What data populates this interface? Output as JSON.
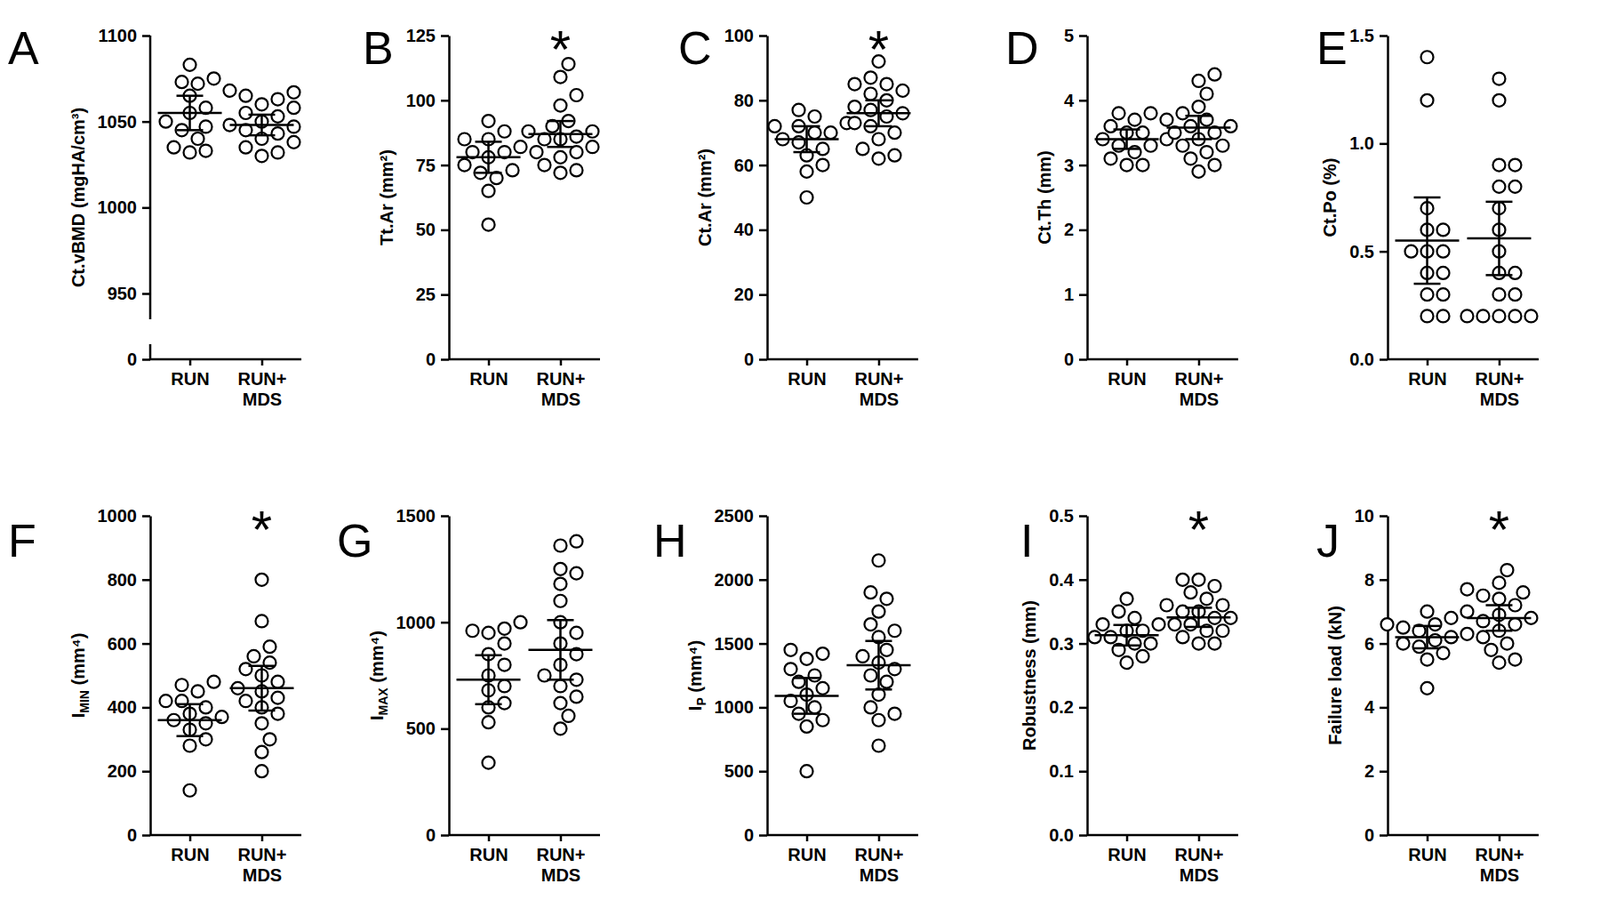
{
  "chart_data": [
    {
      "type": "scatter",
      "title": "A",
      "y_label": "Ct.vBMD (mgHA/cm³)",
      "categories": [
        "RUN",
        "RUN+\nMDS"
      ],
      "values": [
        [
          1083,
          1075,
          1072,
          1073,
          1065,
          1058,
          1055,
          1050,
          1047,
          1045,
          1040,
          1033,
          1032,
          1035
        ],
        [
          1067,
          1068,
          1065,
          1063,
          1060,
          1058,
          1055,
          1053,
          1050,
          1048,
          1047,
          1045,
          1043,
          1040,
          1038,
          1035,
          1032,
          1030
        ]
      ],
      "mean": [
        1055,
        1048
      ],
      "error": [
        10,
        6
      ],
      "ylim": [
        0,
        1100
      ],
      "y_break": [
        0,
        935
      ],
      "yticks": [
        0,
        950,
        1000,
        1050,
        1100
      ]
    },
    {
      "type": "scatter",
      "title": "B",
      "y_label": "Tt.Ar (mm²)",
      "categories": [
        "RUN",
        "RUN+\nMDS"
      ],
      "values": [
        [
          92,
          88,
          85,
          85,
          80,
          80,
          78,
          75,
          73,
          72,
          70,
          65,
          52,
          82
        ],
        [
          114,
          109,
          102,
          98,
          92,
          90,
          88,
          88,
          85,
          85,
          82,
          80,
          78,
          75,
          73,
          72,
          80,
          86
        ]
      ],
      "mean": [
        78,
        87
      ],
      "error": [
        6,
        5
      ],
      "ylim": [
        0,
        125
      ],
      "yticks": [
        0,
        25,
        50,
        75,
        100,
        125
      ],
      "annotation": "*"
    },
    {
      "type": "scatter",
      "title": "C",
      "y_label": "Ct.Ar (mm²)",
      "categories": [
        "RUN",
        "RUN+\nMDS"
      ],
      "values": [
        [
          77,
          75,
          73,
          72,
          70,
          70,
          68,
          67,
          65,
          63,
          60,
          58,
          50,
          72
        ],
        [
          92,
          87,
          85,
          83,
          82,
          80,
          78,
          77,
          76,
          75,
          73,
          72,
          70,
          68,
          65,
          63,
          62,
          85
        ]
      ],
      "mean": [
        68,
        76
      ],
      "error": [
        4,
        4
      ],
      "ylim": [
        0,
        100
      ],
      "yticks": [
        0,
        20,
        40,
        60,
        80,
        100
      ],
      "annotation": "*"
    },
    {
      "type": "scatter",
      "title": "D",
      "y_label": "Ct.Th (mm)",
      "categories": [
        "RUN",
        "RUN+\nMDS"
      ],
      "values": [
        [
          3.8,
          3.8,
          3.7,
          3.6,
          3.5,
          3.4,
          3.4,
          3.3,
          3.3,
          3.2,
          3.1,
          3.0,
          3.0,
          3.5
        ],
        [
          4.4,
          4.3,
          4.1,
          3.9,
          3.8,
          3.7,
          3.7,
          3.6,
          3.5,
          3.5,
          3.4,
          3.3,
          3.3,
          3.2,
          3.1,
          3.0,
          2.9,
          3.6
        ]
      ],
      "mean": [
        3.4,
        3.58
      ],
      "error": [
        0.15,
        0.18
      ],
      "ylim": [
        0,
        5
      ],
      "yticks": [
        0,
        1,
        2,
        3,
        4,
        5
      ]
    },
    {
      "type": "scatter",
      "title": "E",
      "y_label": "Ct.Po (%)",
      "categories": [
        "RUN",
        "RUN+\nMDS"
      ],
      "values": [
        [
          1.4,
          1.2,
          0.7,
          0.6,
          0.5,
          0.5,
          0.5,
          0.4,
          0.4,
          0.3,
          0.3,
          0.2,
          0.2,
          0.6
        ],
        [
          1.3,
          1.2,
          0.9,
          0.9,
          0.8,
          0.7,
          0.6,
          0.5,
          0.4,
          0.4,
          0.3,
          0.3,
          0.2,
          0.2,
          0.2,
          0.2,
          0.2,
          0.8
        ]
      ],
      "mean": [
        0.55,
        0.56
      ],
      "error": [
        0.2,
        0.17
      ],
      "ylim": [
        0,
        1.5
      ],
      "yticks": [
        {
          "value": 0,
          "label": "0.0"
        },
        0.5,
        {
          "value": 1,
          "label": "1.0"
        },
        1.5
      ]
    },
    {
      "type": "scatter",
      "title": "F",
      "y_label": "I",
      "y_label_subscript": "MIN",
      "y_label_unit": " (mm⁴)",
      "categories": [
        "RUN",
        "RUN+\nMDS"
      ],
      "values": [
        [
          470,
          480,
          450,
          420,
          400,
          380,
          370,
          360,
          350,
          330,
          300,
          280,
          140,
          420
        ],
        [
          800,
          670,
          590,
          560,
          520,
          500,
          480,
          460,
          450,
          420,
          400,
          380,
          350,
          300,
          260,
          200,
          540,
          430
        ]
      ],
      "mean": [
        360,
        460
      ],
      "error": [
        50,
        70
      ],
      "ylim": [
        0,
        1000
      ],
      "yticks": [
        0,
        200,
        400,
        600,
        800,
        1000
      ],
      "annotation": "*"
    },
    {
      "type": "scatter",
      "title": "G",
      "y_label": "I",
      "y_label_subscript": "MAX",
      "y_label_unit": " (mm⁴)",
      "categories": [
        "RUN",
        "RUN+\nMDS"
      ],
      "values": [
        [
          1000,
          970,
          960,
          950,
          900,
          800,
          750,
          700,
          680,
          620,
          600,
          530,
          340,
          850
        ],
        [
          1380,
          1360,
          1250,
          1230,
          1180,
          1100,
          1000,
          900,
          850,
          800,
          750,
          700,
          650,
          620,
          560,
          500,
          950,
          730
        ]
      ],
      "mean": [
        730,
        870
      ],
      "error": [
        115,
        140
      ],
      "ylim": [
        0,
        1500
      ],
      "yticks": [
        0,
        500,
        1000,
        1500
      ]
    },
    {
      "type": "scatter",
      "title": "H",
      "y_label": "I",
      "y_label_subscript": "P",
      "y_label_unit": " (mm⁴)",
      "categories": [
        "RUN",
        "RUN+\nMDS"
      ],
      "values": [
        [
          1450,
          1420,
          1380,
          1300,
          1250,
          1150,
          1100,
          1050,
          1000,
          950,
          900,
          850,
          500,
          1200
        ],
        [
          2150,
          1900,
          1850,
          1750,
          1650,
          1550,
          1450,
          1400,
          1350,
          1300,
          1250,
          1200,
          1100,
          1000,
          950,
          900,
          700,
          1600
        ]
      ],
      "mean": [
        1090,
        1330
      ],
      "error": [
        140,
        190
      ],
      "ylim": [
        0,
        2500
      ],
      "yticks": [
        0,
        500,
        1000,
        1500,
        2000,
        2500
      ]
    },
    {
      "type": "scatter",
      "title": "I",
      "y_label": "Robustness (mm)",
      "categories": [
        "RUN",
        "RUN+\nMDS"
      ],
      "values": [
        [
          0.37,
          0.35,
          0.34,
          0.33,
          0.32,
          0.32,
          0.31,
          0.31,
          0.3,
          0.3,
          0.29,
          0.28,
          0.27,
          0.33
        ],
        [
          0.4,
          0.4,
          0.39,
          0.38,
          0.37,
          0.36,
          0.35,
          0.35,
          0.34,
          0.34,
          0.33,
          0.33,
          0.32,
          0.32,
          0.31,
          0.3,
          0.3,
          0.36
        ]
      ],
      "mean": [
        0.313,
        0.341
      ],
      "error": [
        0.016,
        0.015
      ],
      "ylim": [
        0,
        0.5
      ],
      "yticks": [
        {
          "value": 0,
          "label": "0.0"
        },
        0.1,
        0.2,
        0.3,
        0.4,
        0.5
      ],
      "annotation": "*"
    },
    {
      "type": "scatter",
      "title": "J",
      "y_label": "Failure load (kN)",
      "categories": [
        "RUN",
        "RUN+\nMDS"
      ],
      "values": [
        [
          7.0,
          6.8,
          6.6,
          6.5,
          6.4,
          6.3,
          6.2,
          6.1,
          6.0,
          5.9,
          5.7,
          5.5,
          4.6,
          6.6
        ],
        [
          8.3,
          7.9,
          7.7,
          7.5,
          7.4,
          7.2,
          7.0,
          6.9,
          6.8,
          6.7,
          6.6,
          6.4,
          6.2,
          6.0,
          5.8,
          5.5,
          5.4,
          7.6
        ]
      ],
      "mean": [
        6.2,
        6.8
      ],
      "error": [
        0.35,
        0.4
      ],
      "ylim": [
        0,
        10
      ],
      "yticks": [
        0,
        2,
        4,
        6,
        8,
        10
      ],
      "annotation": "*"
    }
  ]
}
